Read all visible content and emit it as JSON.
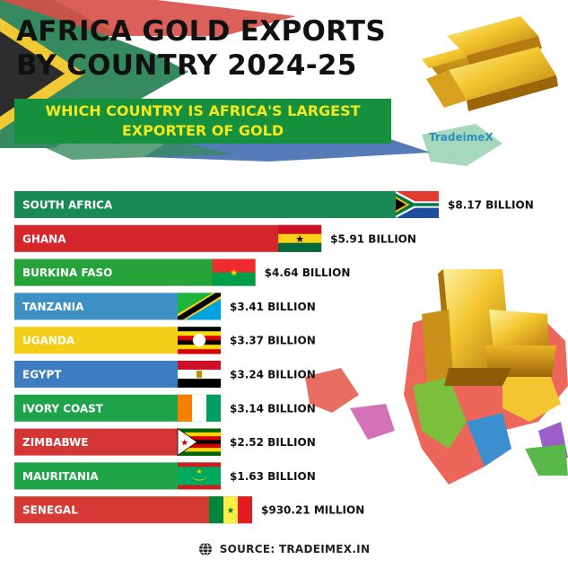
{
  "title": "AFRICA GOLD EXPORTS BY COUNTRY 2024-25",
  "subtitle": "WHICH COUNTRY IS AFRICA'S LARGEST\nEXPORTER OF GOLD",
  "brand": "TradeimeX",
  "source": "SOURCE: TRADEIMEX.IN",
  "chart_data": {
    "type": "bar",
    "orientation": "horizontal",
    "unit": "USD billion",
    "categories": [
      "SOUTH AFRICA",
      "GHANA",
      "BURKINA FASO",
      "TANZANIA",
      "UGANDA",
      "EGYPT",
      "IVORY COAST",
      "ZIMBABWE",
      "MAURITANIA",
      "SENEGAL"
    ],
    "values": [
      8.17,
      5.91,
      4.64,
      3.41,
      3.37,
      3.24,
      3.14,
      2.52,
      1.63,
      0.93021
    ],
    "value_labels": [
      "$8.17 BILLION",
      "$5.91 BILLION",
      "$4.64 BILLION",
      "$3.41 BILLION",
      "$3.37 BILLION",
      "$3.24 BILLION",
      "$3.14 BILLION",
      "$2.52 BILLION",
      "$1.63 BILLION",
      "$930.21 MILLION"
    ],
    "bar_colors": [
      "#1a8a55",
      "#d4262b",
      "#27a33b",
      "#3d8fc4",
      "#f3cf1a",
      "#3d7cc0",
      "#1fa34a",
      "#d43535",
      "#1fa548",
      "#d63a35"
    ],
    "flags": [
      "south-africa-flag",
      "ghana-flag",
      "burkina-faso-flag",
      "tanzania-flag",
      "uganda-flag",
      "egypt-flag",
      "ivory-coast-flag",
      "zimbabwe-flag",
      "mauritania-flag",
      "senegal-flag"
    ]
  }
}
